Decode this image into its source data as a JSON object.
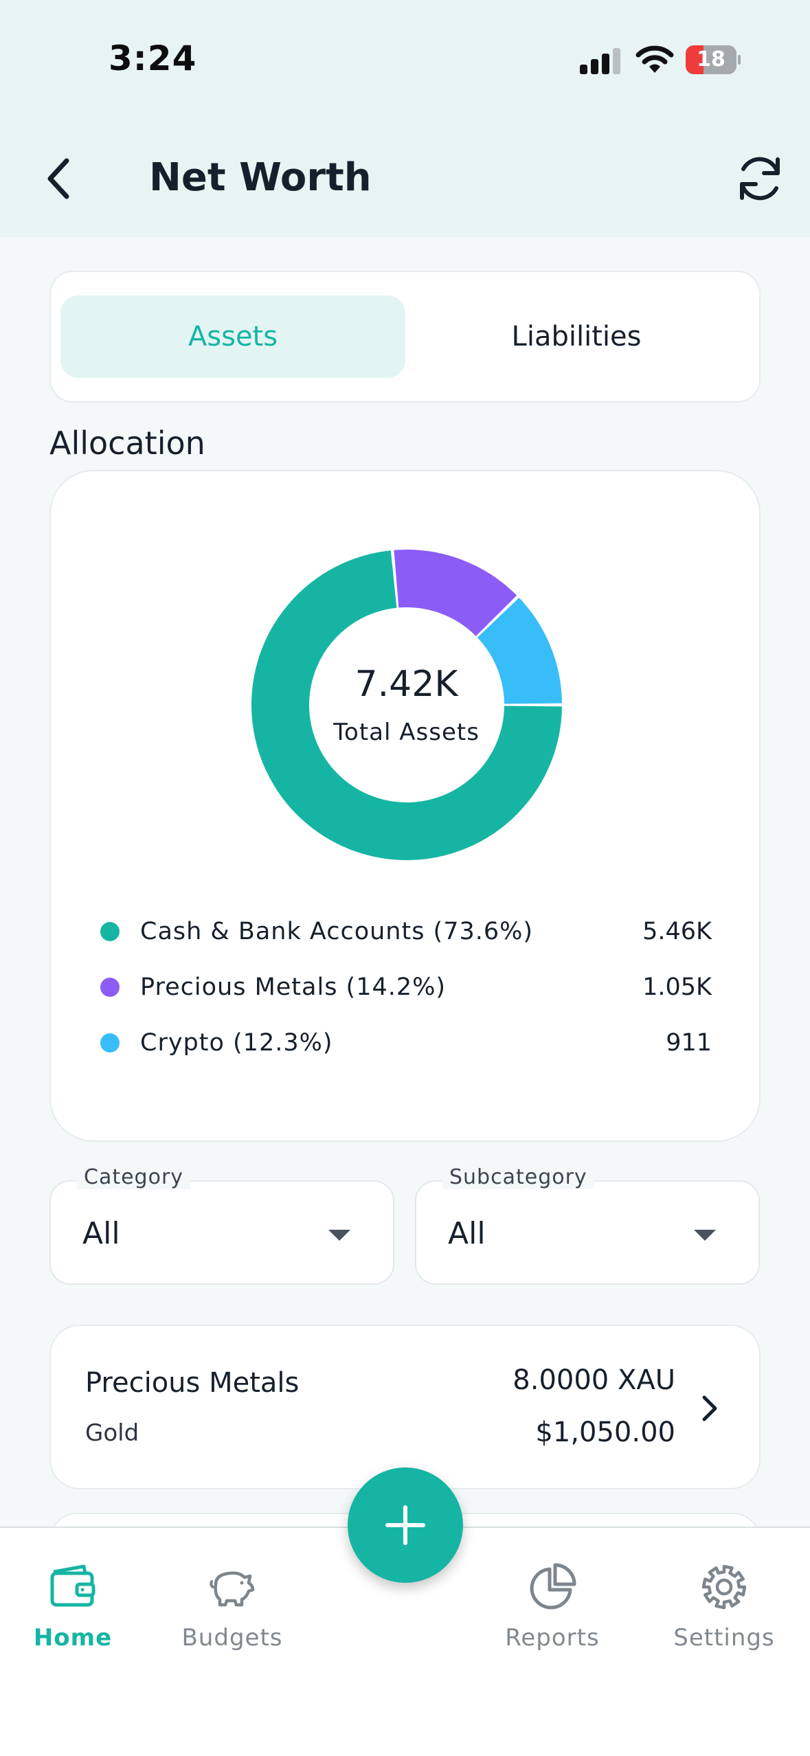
{
  "status_bar": {
    "time": "3:24",
    "battery": "18"
  },
  "header": {
    "title": "Net Worth"
  },
  "segments": {
    "assets": "Assets",
    "liabilities": "Liabilities",
    "selected": "Assets"
  },
  "allocation": {
    "title": "Allocation",
    "total_value": "7.42K",
    "total_label": "Total Assets",
    "items": [
      {
        "label": "Cash & Bank Accounts (73.6%)",
        "value": "5.46K",
        "percent": 73.6,
        "color": "#16b5a3"
      },
      {
        "label": "Precious Metals (14.2%)",
        "value": "1.05K",
        "percent": 14.2,
        "color": "#8b5cf6"
      },
      {
        "label": "Crypto (12.3%)",
        "value": "911",
        "percent": 12.3,
        "color": "#38bdf8"
      }
    ]
  },
  "filters": {
    "category": {
      "label": "Category",
      "value": "All"
    },
    "subcategory": {
      "label": "Subcategory",
      "value": "All"
    }
  },
  "assets": [
    {
      "category": "Precious Metals",
      "subcategory": "Gold",
      "quantity": "8.0000 XAU",
      "value": "$1,050.00"
    }
  ],
  "nav": {
    "home": "Home",
    "budgets": "Budgets",
    "reports": "Reports",
    "settings": "Settings",
    "active": "home"
  },
  "colors": {
    "accent": "#16b5a3",
    "purple": "#8b5cf6",
    "blue": "#38bdf8"
  },
  "icons": {
    "back": "chevron-left-icon",
    "refresh": "refresh-icon",
    "add": "plus-icon",
    "home": "wallet-icon",
    "budgets": "piggy-bank-icon",
    "reports": "pie-chart-icon",
    "settings": "gear-icon"
  }
}
